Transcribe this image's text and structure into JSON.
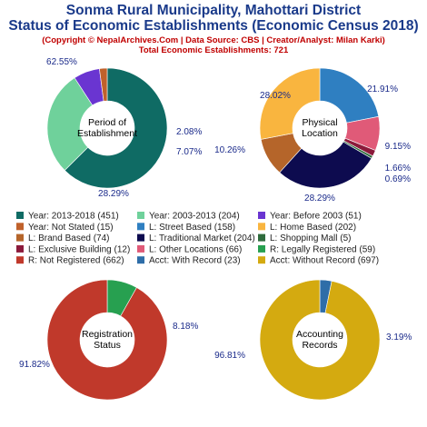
{
  "header": {
    "title_line1": "Sonma Rural Municipality, Mahottari District",
    "title_line2": "Status of Economic Establishments (Economic Census 2018)",
    "subtitle": "(Copyright © NepalArchives.Com | Data Source: CBS | Creator/Analyst: Milan Karki)",
    "total": "Total Economic Establishments: 721"
  },
  "chart_data": [
    {
      "type": "pie",
      "center_label": [
        "Period of",
        "Establishment"
      ],
      "slices": [
        {
          "label": "Year: 2013-2018",
          "value": 451,
          "pct": "62.55%",
          "color": "#0f6b64"
        },
        {
          "label": "Year: 2003-2013",
          "value": 204,
          "pct": "28.29%",
          "color": "#6fd19b"
        },
        {
          "label": "Year: Before 2003",
          "value": 51,
          "pct": "7.07%",
          "color": "#6a35d1"
        },
        {
          "label": "Year: Not Stated",
          "value": 15,
          "pct": "2.08%",
          "color": "#c0612b"
        }
      ]
    },
    {
      "type": "pie",
      "center_label": [
        "Physical",
        "Location"
      ],
      "slices": [
        {
          "label": "L: Street Based",
          "value": 158,
          "pct": "21.91%",
          "color": "#2f7fc1"
        },
        {
          "label": "L: Other Locations",
          "value": 66,
          "pct": "9.15%",
          "color": "#e05a78"
        },
        {
          "label": "L: Exclusive Building",
          "value": 12,
          "pct": "1.66%",
          "color": "#8b1a3b"
        },
        {
          "label": "L: Shopping Mall",
          "value": 5,
          "pct": "0.69%",
          "color": "#2f6b3c"
        },
        {
          "label": "L: Traditional Market",
          "value": 204,
          "pct": "28.29%",
          "color": "#0d0b4f"
        },
        {
          "label": "L: Brand Based",
          "value": 74,
          "pct": "10.26%",
          "color": "#b5652a"
        },
        {
          "label": "L: Home Based",
          "value": 202,
          "pct": "28.02%",
          "color": "#f9b53f"
        }
      ]
    },
    {
      "type": "pie",
      "center_label": [
        "Registration",
        "Status"
      ],
      "slices": [
        {
          "label": "R: Legally Registered",
          "value": 59,
          "pct": "8.18%",
          "color": "#27a050"
        },
        {
          "label": "R: Not Registered",
          "value": 662,
          "pct": "91.82%",
          "color": "#c0392b"
        }
      ]
    },
    {
      "type": "pie",
      "center_label": [
        "Accounting",
        "Records"
      ],
      "slices": [
        {
          "label": "Acct: With Record",
          "value": 23,
          "pct": "3.19%",
          "color": "#2e6da8"
        },
        {
          "label": "Acct: Without Record",
          "value": 697,
          "pct": "96.81%",
          "color": "#d4aa10"
        }
      ]
    }
  ],
  "legend": [
    {
      "text": "Year: 2013-2018 (451)",
      "color": "#0f6b64"
    },
    {
      "text": "Year: 2003-2013 (204)",
      "color": "#6fd19b"
    },
    {
      "text": "Year: Before 2003 (51)",
      "color": "#6a35d1"
    },
    {
      "text": "Year: Not Stated (15)",
      "color": "#c0612b"
    },
    {
      "text": "L: Street Based (158)",
      "color": "#2f7fc1"
    },
    {
      "text": "L: Home Based (202)",
      "color": "#f9b53f"
    },
    {
      "text": "L: Brand Based (74)",
      "color": "#b5652a"
    },
    {
      "text": "L: Traditional Market (204)",
      "color": "#0d0b4f"
    },
    {
      "text": "L: Shopping Mall (5)",
      "color": "#2f6b3c"
    },
    {
      "text": "L: Exclusive Building (12)",
      "color": "#8b1a3b"
    },
    {
      "text": "L: Other Locations (66)",
      "color": "#e05a78"
    },
    {
      "text": "R: Legally Registered (59)",
      "color": "#27a050"
    },
    {
      "text": "R: Not Registered (662)",
      "color": "#c0392b"
    },
    {
      "text": "Acct: With Record (23)",
      "color": "#2e6da8"
    },
    {
      "text": "Acct: Without Record (697)",
      "color": "#d4aa10"
    }
  ]
}
